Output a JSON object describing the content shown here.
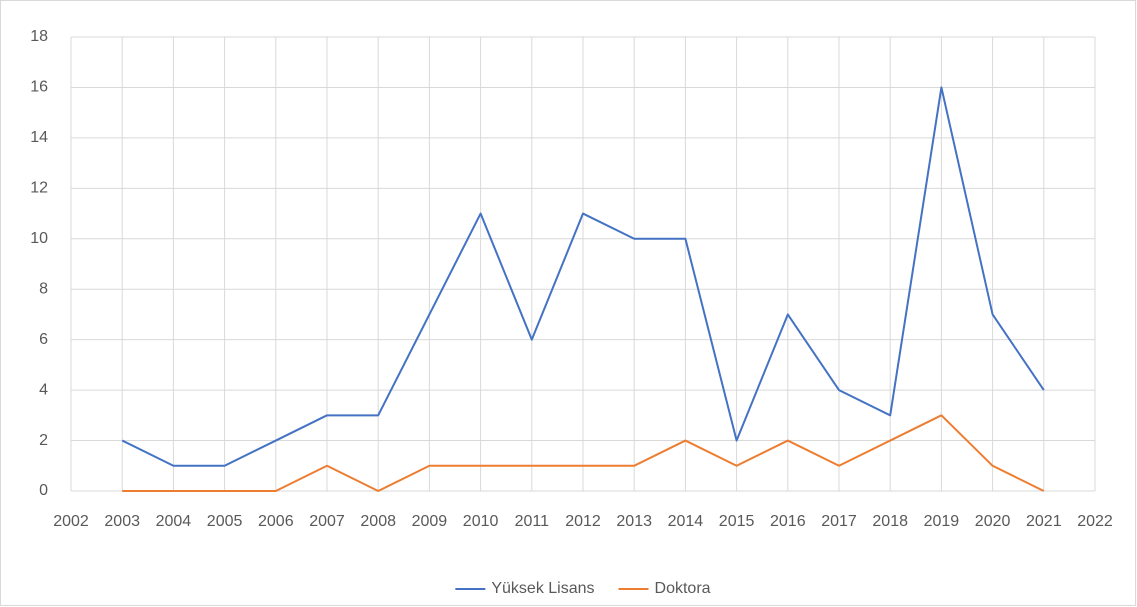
{
  "chart_data": {
    "type": "line",
    "x": [
      2003,
      2004,
      2005,
      2006,
      2007,
      2008,
      2009,
      2010,
      2011,
      2012,
      2013,
      2014,
      2015,
      2016,
      2017,
      2018,
      2019,
      2020,
      2021
    ],
    "series": [
      {
        "name": "Yüksek Lisans",
        "color": "#4472c4",
        "values": [
          2,
          1,
          1,
          2,
          3,
          3,
          7,
          11,
          6,
          11,
          10,
          10,
          2,
          7,
          4,
          3,
          16,
          7,
          4
        ]
      },
      {
        "name": "Doktora",
        "color": "#ed7d31",
        "values": [
          0,
          0,
          0,
          0,
          1,
          0,
          1,
          1,
          1,
          1,
          1,
          2,
          1,
          2,
          1,
          2,
          3,
          1,
          0
        ]
      }
    ],
    "xlim": [
      2002,
      2022
    ],
    "xticks": [
      2002,
      2003,
      2004,
      2005,
      2006,
      2007,
      2008,
      2009,
      2010,
      2011,
      2012,
      2013,
      2014,
      2015,
      2016,
      2017,
      2018,
      2019,
      2020,
      2021,
      2022
    ],
    "ylim": [
      0,
      18
    ],
    "yticks": [
      0,
      2,
      4,
      6,
      8,
      10,
      12,
      14,
      16,
      18
    ],
    "grid": true,
    "legend": "bottom"
  }
}
